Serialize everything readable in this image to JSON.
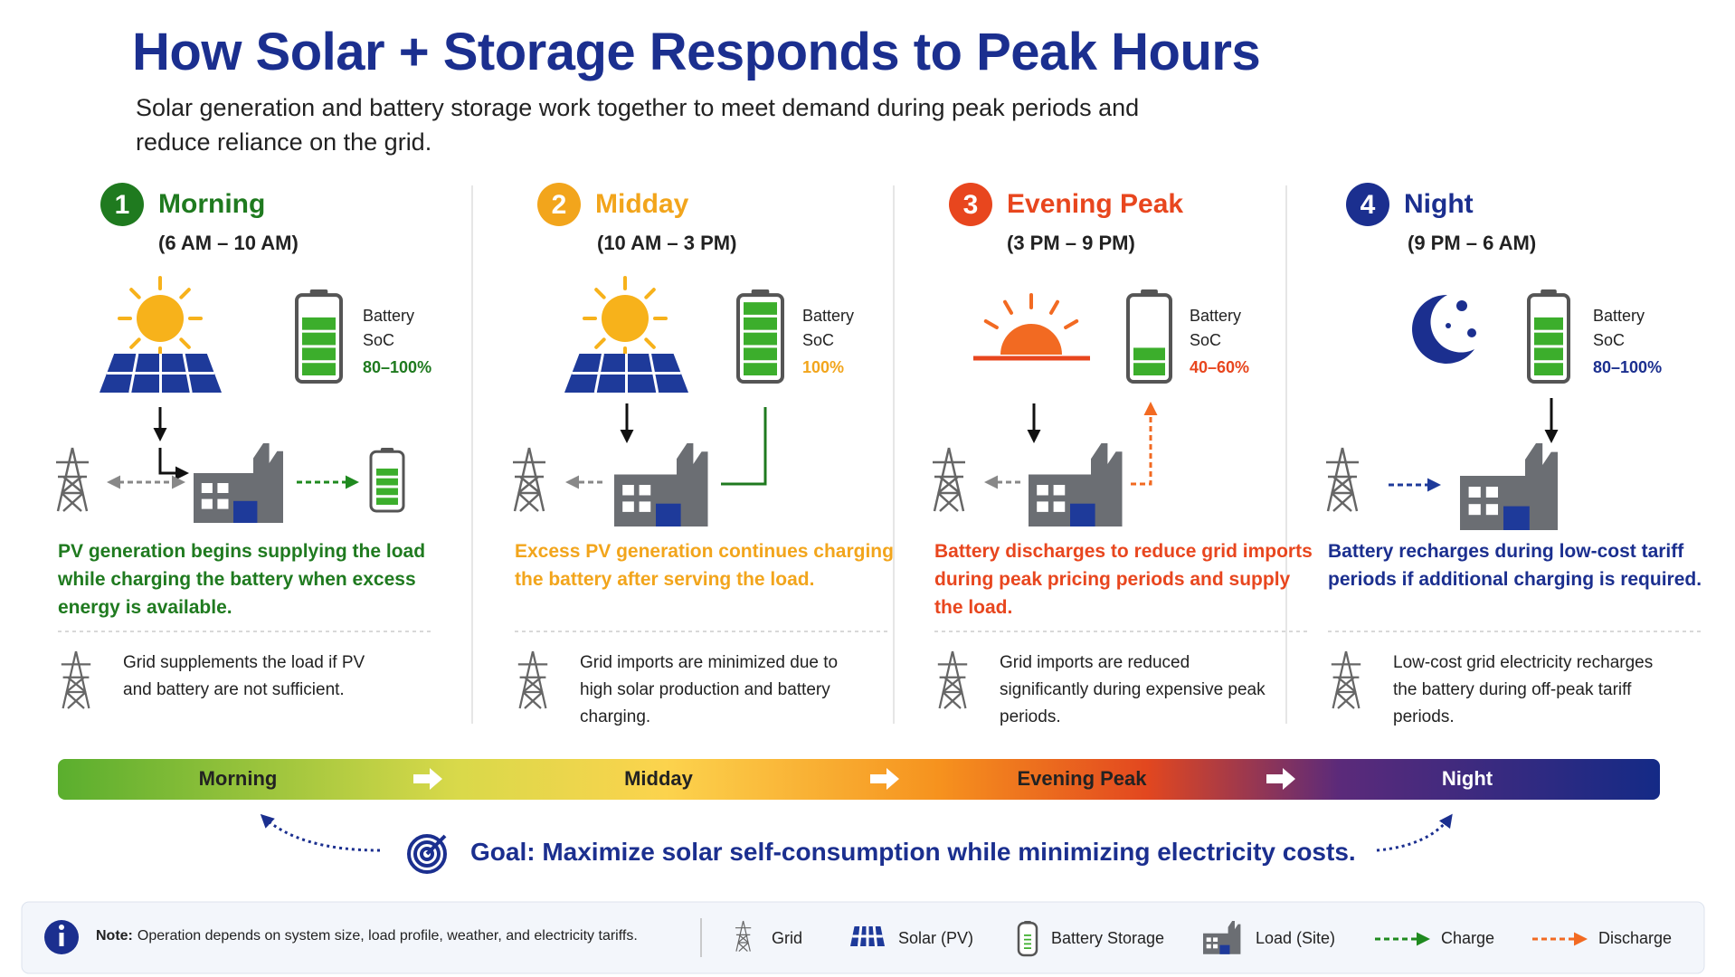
{
  "header": {
    "title": "How Solar + Storage Responds to Peak Hours",
    "subtitle": "Solar generation and battery storage work together to meet demand during peak periods and reduce reliance on the grid."
  },
  "phases": [
    {
      "number": "1",
      "name": "Morning",
      "time": "(6 AM – 10 AM)",
      "color": "#1f7a1f",
      "battery_label": "Battery SoC",
      "soc": "80–100%",
      "description": "PV generation begins supplying the load while charging the battery when excess energy is available.",
      "grid_note": "Grid supplements the load if PV and battery are not sufficient."
    },
    {
      "number": "2",
      "name": "Midday",
      "time": "(10 AM – 3 PM)",
      "color": "#f2a51c",
      "battery_label": "Battery SoC",
      "soc": "100%",
      "description": "Excess PV generation continues charging the battery after serving the load.",
      "grid_note": "Grid imports are minimized due to high solar production and battery charging."
    },
    {
      "number": "3",
      "name": "Evening Peak",
      "time": "(3 PM – 9 PM)",
      "color": "#e8461e",
      "battery_label": "Battery SoC",
      "soc": "40–60%",
      "description": "Battery discharges to reduce grid imports during peak pricing periods and supply the load.",
      "grid_note": "Grid imports are reduced significantly during expensive peak periods."
    },
    {
      "number": "4",
      "name": "Night",
      "time": "(9 PM – 6 AM)",
      "color": "#1b2f8f",
      "battery_label": "Battery SoC",
      "soc": "80–100%",
      "description": "Battery recharges during low-cost tariff periods if additional charging is required.",
      "grid_note": "Low-cost grid electricity recharges the battery during off-peak tariff periods."
    }
  ],
  "timeline": [
    "Morning",
    "Midday",
    "Evening Peak",
    "Night"
  ],
  "goal": "Goal: Maximize solar self-consumption while minimizing electricity costs.",
  "footer": {
    "note_label": "Note:",
    "note_text": "Operation depends on system size, load profile, weather, and electricity tariffs.",
    "legend": [
      "Grid",
      "Solar (PV)",
      "Battery Storage",
      "Load (Site)",
      "Charge",
      "Discharge"
    ]
  }
}
